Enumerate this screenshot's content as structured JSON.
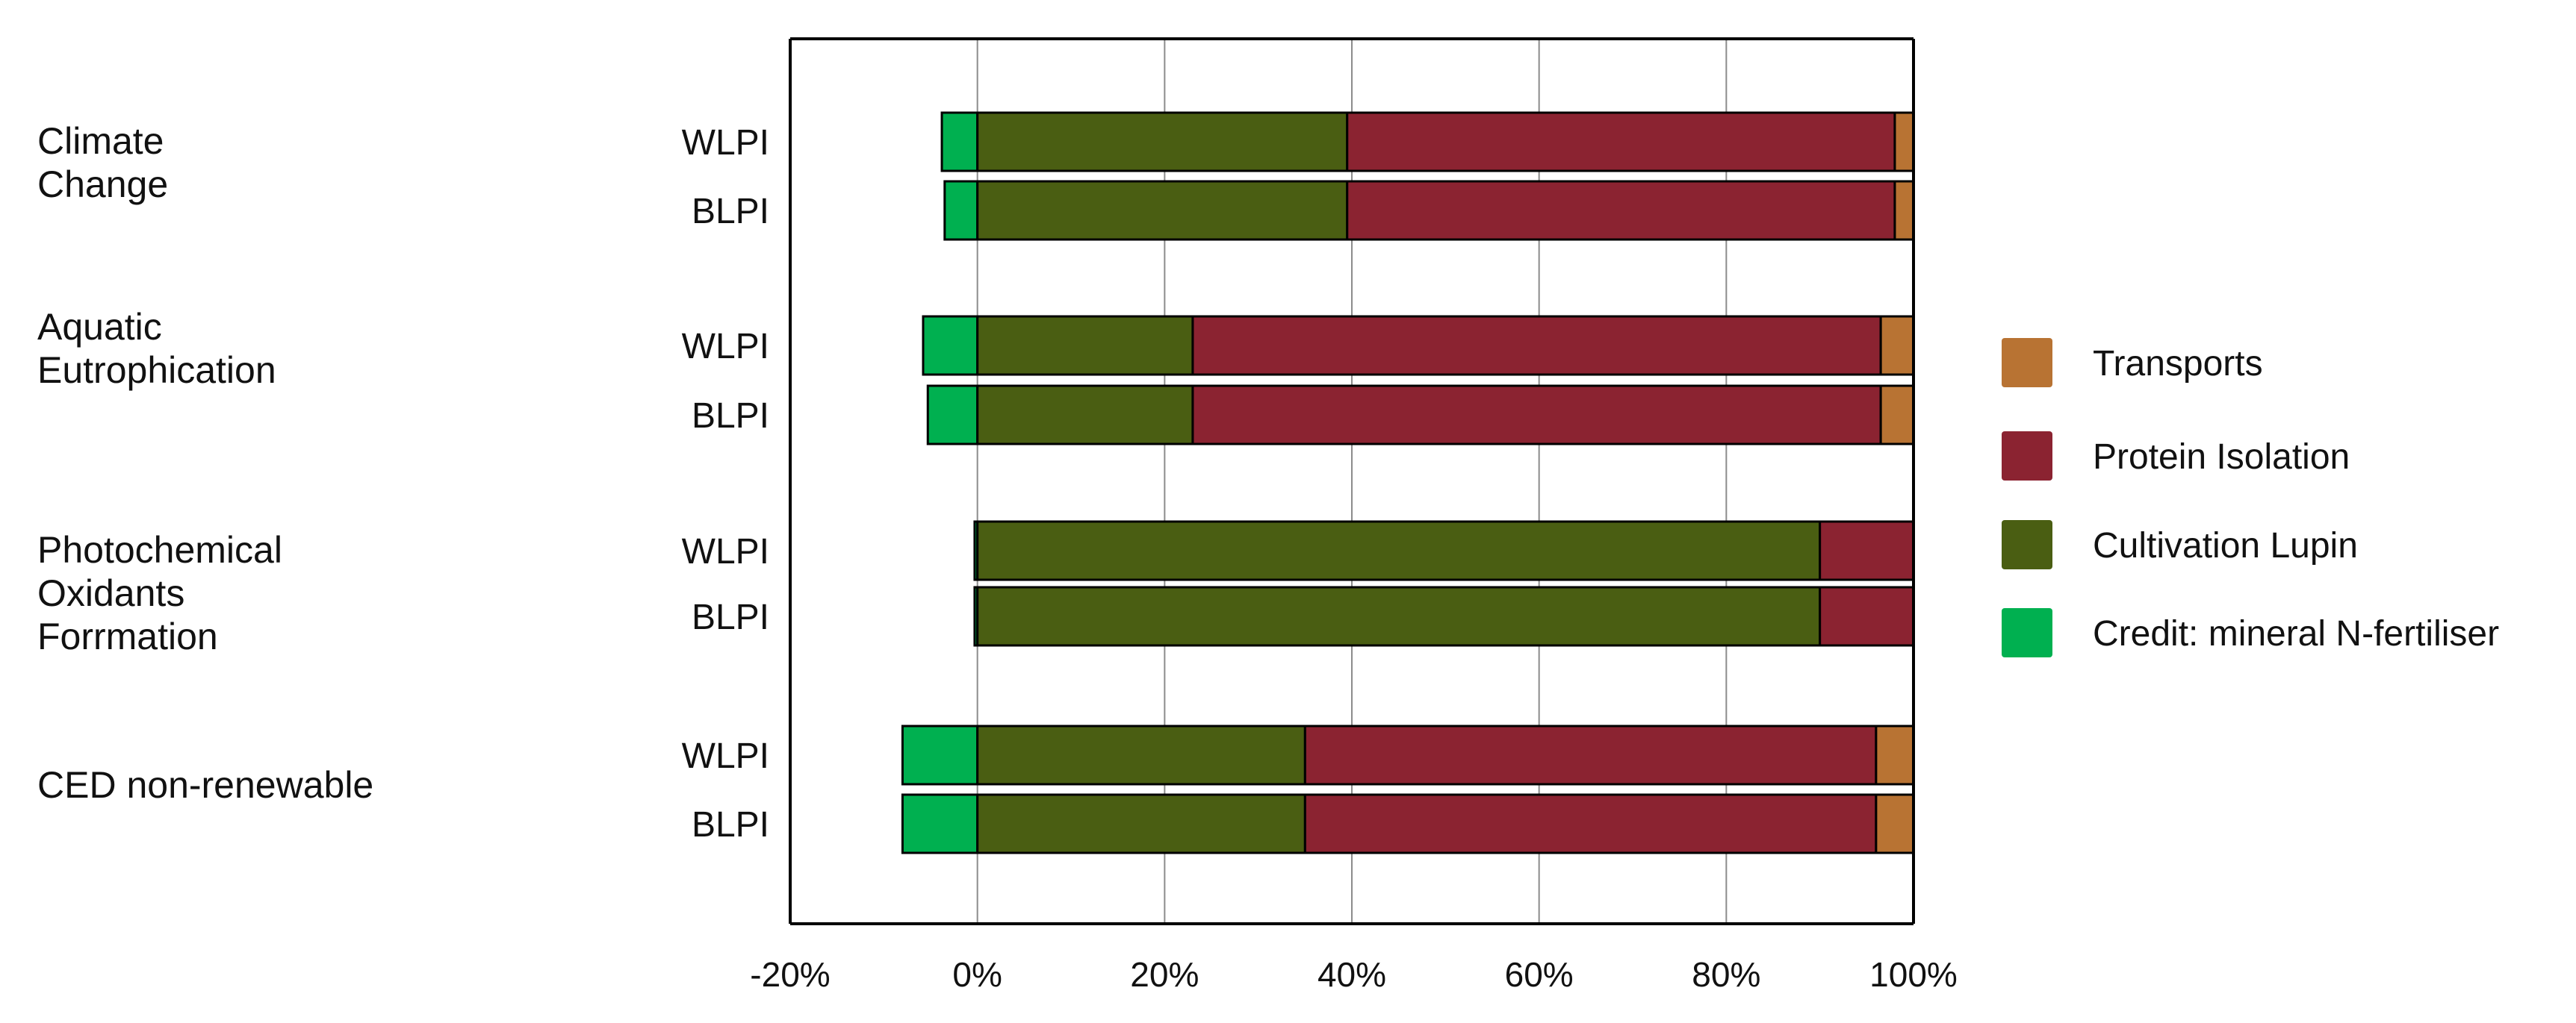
{
  "chart_data": {
    "type": "bar",
    "orientation": "horizontal",
    "stacked": true,
    "xlim": [
      -20,
      100
    ],
    "xticks": [
      "-20%",
      "0%",
      "20%",
      "40%",
      "60%",
      "80%",
      "100%"
    ],
    "grid": true,
    "legend_position": "right",
    "groups": [
      {
        "label_lines": [
          "Climate",
          "Change"
        ],
        "bars": [
          {
            "label": "WLPI",
            "values": [
              -3.8,
              39.5,
              58.5,
              2.0
            ]
          },
          {
            "label": "BLPI",
            "values": [
              -3.5,
              39.5,
              58.5,
              2.0
            ]
          }
        ]
      },
      {
        "label_lines": [
          "Aquatic",
          "Eutrophication"
        ],
        "bars": [
          {
            "label": "WLPI",
            "values": [
              -5.8,
              23.0,
              73.5,
              3.5
            ]
          },
          {
            "label": "BLPI",
            "values": [
              -5.3,
              23.0,
              73.5,
              3.5
            ]
          }
        ]
      },
      {
        "label_lines": [
          "Photochemical",
          "Oxidants",
          "Forrmation"
        ],
        "bars": [
          {
            "label": "WLPI",
            "values": [
              -0.3,
              90.0,
              10.0,
              0.0
            ]
          },
          {
            "label": "BLPI",
            "values": [
              -0.3,
              90.0,
              10.0,
              0.0
            ]
          }
        ]
      },
      {
        "label_lines": [
          "CED non-renewable"
        ],
        "bars": [
          {
            "label": "WLPI",
            "values": [
              -8.0,
              35.0,
              61.0,
              4.0
            ]
          },
          {
            "label": "BLPI",
            "values": [
              -8.0,
              35.0,
              61.0,
              4.0
            ]
          }
        ]
      }
    ],
    "series": [
      {
        "name": "Credit: mineral N-fertiliser",
        "color": "#00b050"
      },
      {
        "name": "Cultivation Lupin",
        "color": "#4a5e12"
      },
      {
        "name": "Protein Isolation",
        "color": "#8b2331"
      },
      {
        "name": "Transports",
        "color": "#b87333"
      }
    ],
    "legend_order": [
      "Transports",
      "Protein Isolation",
      "Cultivation Lupin",
      "Credit: mineral N-fertiliser"
    ]
  }
}
